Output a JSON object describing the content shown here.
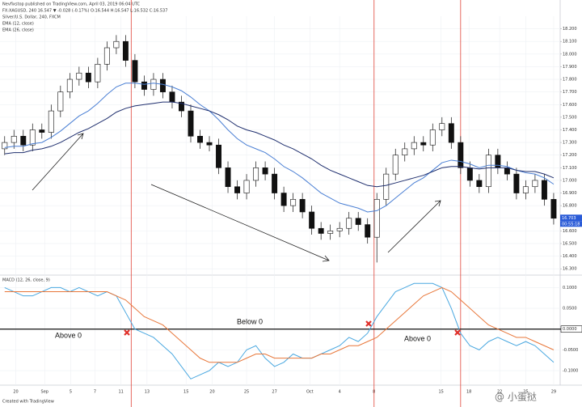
{
  "header": {
    "published": "Nevfixstop published on TradingView.com, April 03, 2019 06:04 UTC",
    "symbol": "FX:XAGUSD, 240 16.547 ▼ -0.028 (-0.17%) O:16.544 H:16.547 L:16.532 C:16.537",
    "footer": "Created with TradingView",
    "watermark": "@ 小蛋挞"
  },
  "chart_data": [
    {
      "type": "candlestick",
      "title": "Silver/U.S. Dollar, 240, FXCM",
      "x": [
        0,
        1,
        2,
        3,
        4,
        5,
        6,
        7,
        8,
        9,
        10,
        11,
        12,
        13,
        14,
        15,
        16,
        17,
        18,
        19,
        20,
        21,
        22,
        23,
        24,
        25,
        26,
        27,
        28,
        29,
        30,
        31,
        32,
        33,
        34,
        35,
        36,
        37,
        38,
        39,
        40,
        41,
        42,
        43,
        44,
        45,
        46,
        47,
        48,
        49,
        50,
        51,
        52,
        53,
        54,
        55,
        56,
        57,
        58,
        59
      ],
      "open": [
        17.25,
        17.3,
        17.35,
        17.28,
        17.4,
        17.38,
        17.55,
        17.7,
        17.8,
        17.85,
        17.78,
        17.92,
        18.05,
        18.1,
        17.95,
        17.78,
        17.72,
        17.8,
        17.7,
        17.62,
        17.55,
        17.35,
        17.3,
        17.28,
        17.1,
        16.95,
        16.9,
        17.0,
        17.1,
        17.05,
        16.9,
        16.8,
        16.85,
        16.75,
        16.62,
        16.58,
        16.6,
        16.62,
        16.7,
        16.65,
        16.55,
        16.85,
        17.05,
        17.2,
        17.25,
        17.3,
        17.28,
        17.4,
        17.45,
        17.3,
        17.1,
        17.0,
        16.95,
        17.2,
        17.1,
        17.05,
        16.9,
        16.95,
        17.0,
        16.85
      ],
      "high": [
        17.35,
        17.4,
        17.4,
        17.45,
        17.45,
        17.6,
        17.75,
        17.85,
        17.9,
        17.9,
        17.97,
        18.1,
        18.15,
        18.15,
        18.0,
        17.83,
        17.85,
        17.85,
        17.75,
        17.67,
        17.6,
        17.4,
        17.35,
        17.33,
        17.15,
        17.0,
        17.05,
        17.15,
        17.15,
        17.1,
        16.95,
        16.9,
        16.9,
        16.8,
        16.67,
        16.65,
        16.67,
        16.75,
        16.75,
        16.7,
        16.9,
        17.1,
        17.25,
        17.3,
        17.35,
        17.35,
        17.45,
        17.5,
        17.5,
        17.35,
        17.15,
        17.05,
        17.25,
        17.25,
        17.15,
        17.1,
        17.0,
        17.05,
        17.05,
        16.9
      ],
      "low": [
        17.2,
        17.25,
        17.23,
        17.23,
        17.33,
        17.33,
        17.5,
        17.65,
        17.75,
        17.73,
        17.73,
        17.87,
        18.0,
        17.9,
        17.73,
        17.67,
        17.67,
        17.65,
        17.57,
        17.5,
        17.3,
        17.25,
        17.23,
        17.05,
        16.9,
        16.85,
        16.85,
        16.95,
        17.0,
        16.85,
        16.75,
        16.75,
        16.7,
        16.57,
        16.53,
        16.53,
        16.55,
        16.57,
        16.6,
        16.5,
        16.35,
        16.8,
        17.0,
        17.15,
        17.2,
        17.23,
        17.23,
        17.35,
        17.25,
        17.05,
        16.95,
        16.9,
        16.9,
        17.05,
        17.0,
        16.85,
        16.85,
        16.9,
        16.8,
        16.65
      ],
      "close": [
        17.3,
        17.35,
        17.28,
        17.4,
        17.38,
        17.55,
        17.7,
        17.8,
        17.85,
        17.78,
        17.92,
        18.05,
        18.1,
        17.95,
        17.78,
        17.72,
        17.8,
        17.7,
        17.62,
        17.55,
        17.35,
        17.3,
        17.28,
        17.1,
        16.95,
        16.9,
        17.0,
        17.1,
        17.05,
        16.9,
        16.8,
        16.85,
        16.75,
        16.62,
        16.58,
        16.6,
        16.62,
        16.7,
        16.65,
        16.55,
        16.85,
        17.05,
        17.2,
        17.25,
        17.3,
        17.28,
        17.4,
        17.45,
        17.3,
        17.1,
        17.0,
        16.95,
        17.2,
        17.1,
        17.05,
        16.9,
        16.95,
        17.0,
        16.85,
        16.7
      ],
      "series": [
        {
          "name": "EMA (12, close)",
          "color": "#4a7fd4",
          "values": [
            17.26,
            17.27,
            17.27,
            17.29,
            17.3,
            17.34,
            17.39,
            17.45,
            17.51,
            17.55,
            17.61,
            17.68,
            17.74,
            17.77,
            17.77,
            17.76,
            17.77,
            17.76,
            17.74,
            17.71,
            17.66,
            17.6,
            17.55,
            17.48,
            17.4,
            17.33,
            17.28,
            17.25,
            17.22,
            17.17,
            17.11,
            17.07,
            17.02,
            16.96,
            16.9,
            16.86,
            16.82,
            16.8,
            16.78,
            16.75,
            16.76,
            16.8,
            16.86,
            16.92,
            16.98,
            17.02,
            17.08,
            17.14,
            17.16,
            17.15,
            17.13,
            17.1,
            17.12,
            17.12,
            17.11,
            17.08,
            17.06,
            17.05,
            17.02,
            16.97
          ]
        },
        {
          "name": "EMA (26, close)",
          "color": "#1f2f6e",
          "values": [
            17.21,
            17.22,
            17.22,
            17.24,
            17.25,
            17.27,
            17.3,
            17.34,
            17.38,
            17.41,
            17.45,
            17.49,
            17.54,
            17.57,
            17.59,
            17.6,
            17.61,
            17.62,
            17.62,
            17.61,
            17.59,
            17.57,
            17.55,
            17.52,
            17.48,
            17.43,
            17.4,
            17.38,
            17.35,
            17.32,
            17.28,
            17.25,
            17.21,
            17.17,
            17.12,
            17.08,
            17.05,
            17.02,
            16.99,
            16.96,
            16.95,
            16.96,
            16.98,
            17.0,
            17.02,
            17.04,
            17.07,
            17.1,
            17.11,
            17.11,
            17.1,
            17.09,
            17.1,
            17.1,
            17.1,
            17.08,
            17.07,
            17.07,
            17.05,
            17.02
          ]
        }
      ],
      "xlim": [
        -0.5,
        59.7
      ],
      "ylim": [
        16.25,
        18.3
      ],
      "xticks": [
        {
          "value": 1.2,
          "label": "20"
        },
        {
          "value": 4.3,
          "label": "Sep"
        },
        {
          "value": 7.1,
          "label": "5"
        },
        {
          "value": 9.7,
          "label": "7"
        },
        {
          "value": 12.5,
          "label": "11"
        },
        {
          "value": 15.3,
          "label": "13"
        },
        {
          "value": 19.5,
          "label": "15"
        },
        {
          "value": 22.3,
          "label": "20"
        },
        {
          "value": 26,
          "label": "25"
        },
        {
          "value": 29,
          "label": "27"
        },
        {
          "value": 32.8,
          "label": "Oct"
        },
        {
          "value": 36,
          "label": "4"
        },
        {
          "value": 39.7,
          "label": "8"
        },
        {
          "value": 46.9,
          "label": "15"
        },
        {
          "value": 49.9,
          "label": "18"
        },
        {
          "value": 53.2,
          "label": "22"
        },
        {
          "value": 56,
          "label": "25"
        },
        {
          "value": 59,
          "label": "29"
        }
      ],
      "yticks": [
        {
          "value": 18.2,
          "label": "18.200"
        },
        {
          "value": 18.1,
          "label": "18.100"
        },
        {
          "value": 18,
          "label": "18.000"
        },
        {
          "value": 17.9,
          "label": "17.900"
        },
        {
          "value": 17.8,
          "label": "17.800"
        },
        {
          "value": 17.7,
          "label": "17.700"
        },
        {
          "value": 17.6,
          "label": "17.600"
        },
        {
          "value": 17.5,
          "label": "17.500"
        },
        {
          "value": 17.4,
          "label": "17.400"
        },
        {
          "value": 17.3,
          "label": "17.300"
        },
        {
          "value": 17.2,
          "label": "17.200"
        },
        {
          "value": 17.1,
          "label": "17.100"
        },
        {
          "value": 17,
          "label": "17.000"
        },
        {
          "value": 16.9,
          "label": "16.900"
        },
        {
          "value": 16.8,
          "label": "16.800"
        },
        {
          "value": 16.7,
          "label": "16.700"
        },
        {
          "value": 16.6,
          "label": "16.600"
        },
        {
          "value": 16.5,
          "label": "16.500"
        },
        {
          "value": 16.4,
          "label": "16.400"
        },
        {
          "value": 16.3,
          "label": "16.300"
        }
      ],
      "last_price": 16.703,
      "countdown": "00:55:18",
      "vlines": [
        13.6,
        39.7,
        49.0
      ],
      "vline_color": "#e0453a",
      "up_color": "#ffffff",
      "down_color": "#111111",
      "grid": true
    },
    {
      "type": "line",
      "title": "MACD (12, 26, close, 9)",
      "x": [
        0,
        1,
        2,
        3,
        4,
        5,
        6,
        7,
        8,
        9,
        10,
        11,
        12,
        13,
        14,
        15,
        16,
        17,
        18,
        19,
        20,
        21,
        22,
        23,
        24,
        25,
        26,
        27,
        28,
        29,
        30,
        31,
        32,
        33,
        34,
        35,
        36,
        37,
        38,
        39,
        40,
        41,
        42,
        43,
        44,
        45,
        46,
        47,
        48,
        49,
        50,
        51,
        52,
        53,
        54,
        55,
        56,
        57,
        58,
        59
      ],
      "series": [
        {
          "color": "#4aa8e0",
          "values": [
            0.1,
            0.09,
            0.08,
            0.08,
            0.09,
            0.1,
            0.1,
            0.09,
            0.1,
            0.09,
            0.08,
            0.09,
            0.08,
            0.04,
            0.0,
            -0.01,
            -0.02,
            -0.04,
            -0.06,
            -0.09,
            -0.12,
            -0.11,
            -0.1,
            -0.08,
            -0.09,
            -0.08,
            -0.05,
            -0.04,
            -0.07,
            -0.09,
            -0.08,
            -0.06,
            -0.07,
            -0.07,
            -0.06,
            -0.05,
            -0.04,
            -0.02,
            -0.03,
            -0.01,
            0.03,
            0.06,
            0.09,
            0.1,
            0.11,
            0.11,
            0.11,
            0.1,
            0.05,
            -0.01,
            -0.04,
            -0.05,
            -0.03,
            -0.02,
            -0.03,
            -0.04,
            -0.03,
            -0.04,
            -0.06,
            -0.08
          ]
        },
        {
          "color": "#e8773a",
          "values": [
            0.09,
            0.09,
            0.09,
            0.09,
            0.09,
            0.09,
            0.09,
            0.09,
            0.09,
            0.09,
            0.09,
            0.09,
            0.08,
            0.07,
            0.05,
            0.03,
            0.02,
            0.01,
            -0.01,
            -0.03,
            -0.05,
            -0.07,
            -0.08,
            -0.08,
            -0.08,
            -0.08,
            -0.07,
            -0.06,
            -0.06,
            -0.07,
            -0.07,
            -0.07,
            -0.07,
            -0.07,
            -0.06,
            -0.06,
            -0.05,
            -0.04,
            -0.04,
            -0.03,
            -0.02,
            0.0,
            0.02,
            0.04,
            0.06,
            0.08,
            0.09,
            0.1,
            0.09,
            0.07,
            0.05,
            0.03,
            0.01,
            0.0,
            -0.01,
            -0.02,
            -0.02,
            -0.03,
            -0.04,
            -0.05
          ]
        }
      ],
      "xlim": [
        -0.5,
        59.7
      ],
      "ylim": [
        -0.135,
        0.13
      ],
      "yticks": [
        {
          "value": 0.1,
          "label": "0.1000"
        },
        {
          "value": 0.05,
          "label": "0.0500"
        },
        {
          "value": 0,
          "label": "0.0000"
        },
        {
          "value": -0.05,
          "label": "-0.0500"
        },
        {
          "value": -0.1,
          "label": "-0.1000"
        }
      ],
      "annotations": [
        "Above 0",
        "Below 0",
        "Above 0"
      ],
      "grid": true
    }
  ]
}
